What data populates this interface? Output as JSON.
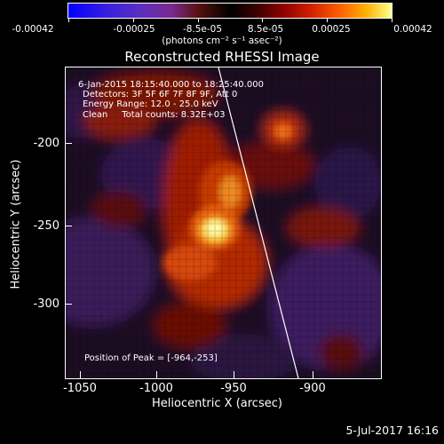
{
  "colorbar": {
    "labels": [
      "-0.00042",
      "-0.00025",
      "-8.5e-05",
      "8.5e-05",
      "0.00025",
      "0.00042"
    ],
    "unit": "(photons cm⁻² s⁻¹ asec⁻²)"
  },
  "title": "Reconstructed RHESSI Image",
  "annotations": {
    "time_range": "6-Jan-2015 18:15:40.000 to 18:25:40.000",
    "detectors": "Detectors: 3F 5F 6F 7F 8F 9F, Att 0",
    "energy": "Energy Range: 12.0 - 25.0 keV",
    "clean": "Clean     Total counts: 8.32E+03",
    "peak": "Position of Peak = [-964,-253]"
  },
  "axes": {
    "xlabel": "Heliocentric X (arcsec)",
    "ylabel": "Heliocentric Y (arcsec)",
    "xticks": [
      "-1050",
      "-1000",
      "-950",
      "-900"
    ],
    "yticks": [
      "-200",
      "-250",
      "-300"
    ]
  },
  "footer": "5-Jul-2017 16:16"
}
